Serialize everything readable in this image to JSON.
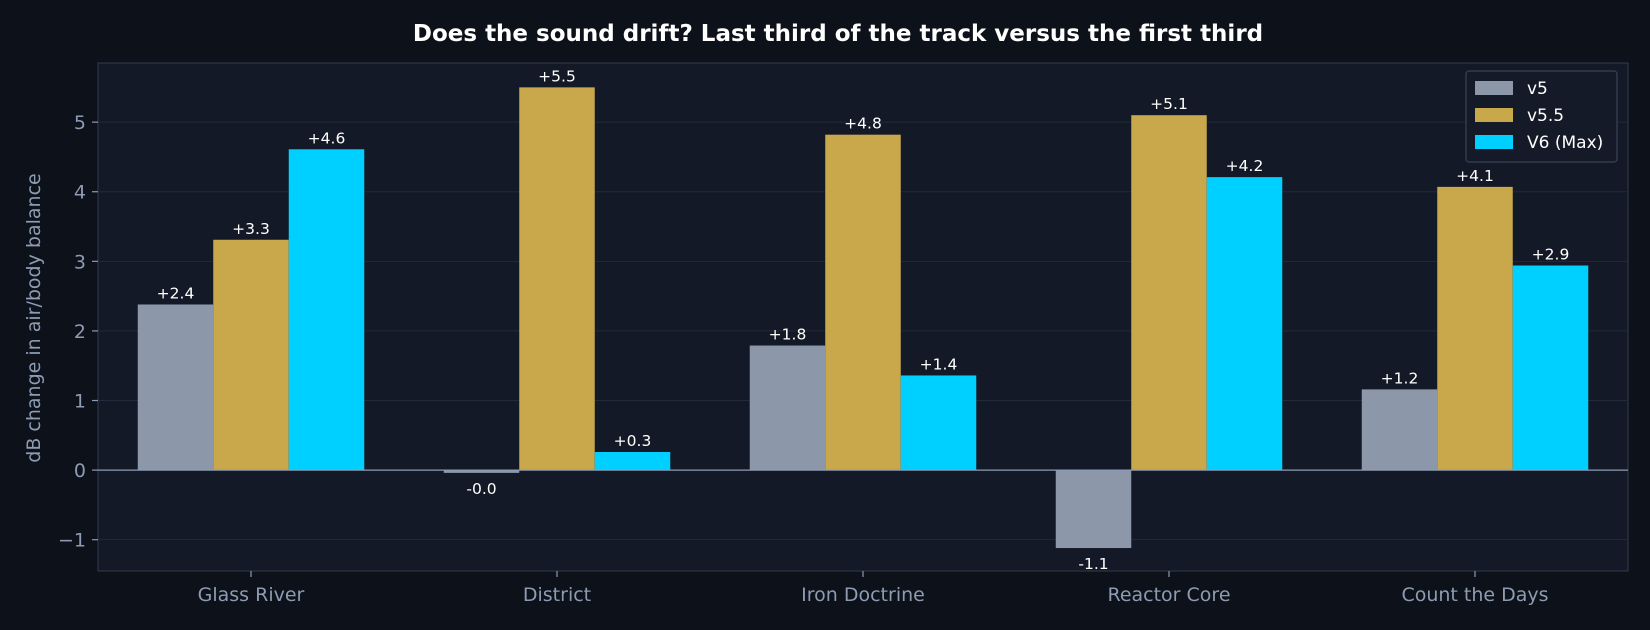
{
  "chart_data": {
    "type": "bar",
    "title": "Does the sound drift? Last third of the track versus the first third",
    "xlabel": "",
    "ylabel": "dB change in air/body balance",
    "ylim": [
      -1.45,
      5.85
    ],
    "yticks": [
      -1,
      0,
      1,
      2,
      3,
      4,
      5
    ],
    "ytick_labels": [
      "−1",
      "0",
      "1",
      "2",
      "3",
      "4",
      "5"
    ],
    "categories": [
      "Glass River",
      "District",
      "Iron Doctrine",
      "Reactor Core",
      "Count the Days"
    ],
    "series": [
      {
        "name": "v5",
        "color": "#8c97aa",
        "values": [
          2.38,
          -0.04,
          1.79,
          -1.12,
          1.16
        ],
        "labels": [
          "+2.4",
          "-0.0",
          "+1.8",
          "-1.1",
          "+1.2"
        ]
      },
      {
        "name": "v5.5",
        "color": "#c9a74b",
        "values": [
          3.31,
          5.5,
          4.82,
          5.1,
          4.07
        ],
        "labels": [
          "+3.3",
          "+5.5",
          "+4.8",
          "+5.1",
          "+4.1"
        ]
      },
      {
        "name": "V6 (Max)",
        "color": "#00d0ff",
        "values": [
          4.61,
          0.26,
          1.36,
          4.21,
          2.94
        ],
        "labels": [
          "+4.6",
          "+0.3",
          "+1.4",
          "+4.2",
          "+2.9"
        ]
      }
    ],
    "grid": true,
    "legend": "top-right",
    "colors": {
      "background": "#0d1119",
      "plot_background": "#131926",
      "grid": "#222b3b",
      "text": "#8d9bb3",
      "zero_line": "#8d9bb3"
    }
  }
}
